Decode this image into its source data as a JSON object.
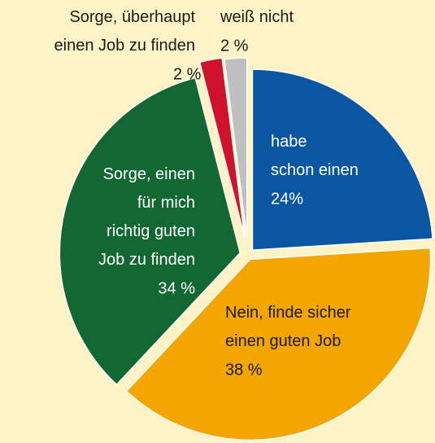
{
  "chart_data": {
    "type": "pie",
    "categories": [
      "habe\nschon einen",
      "Nein, finde sicher\neinen guten Job",
      "Sorge, einen\nfür mich\nrichtig guten\nJob zu finden",
      "Sorge, überhaupt\neinen Job zu finden",
      "weiß nicht"
    ],
    "values": [
      24,
      38,
      34,
      2,
      2
    ],
    "value_labels": [
      "24%",
      "38 %",
      "34 %",
      "2 %",
      "2 %"
    ],
    "colors": [
      "#0b56a0",
      "#f4a600",
      "#136733",
      "#d1122b",
      "#c0c0c0"
    ]
  }
}
